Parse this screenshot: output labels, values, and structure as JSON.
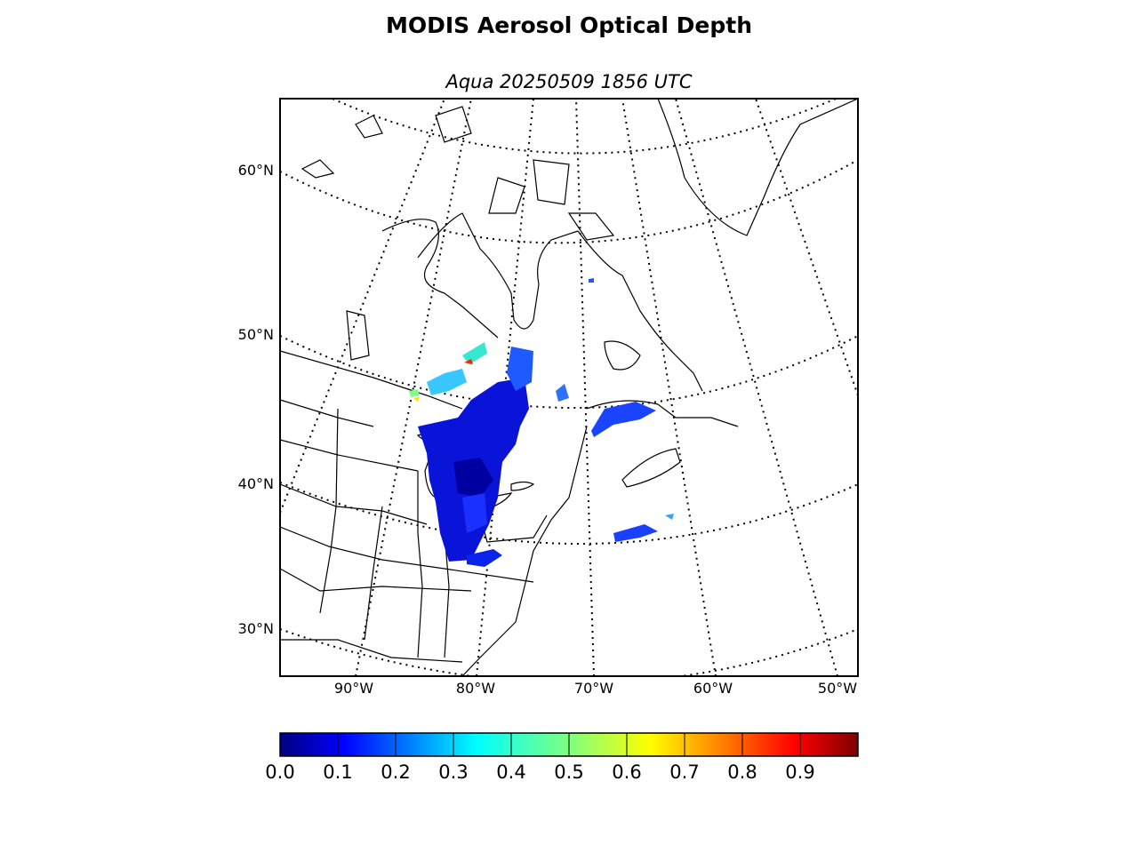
{
  "title": "MODIS Aerosol Optical Depth",
  "subtitle": "Aqua 20250509 1856 UTC",
  "map": {
    "projection": "lambert-conformal",
    "lat_labels": [
      "60°N",
      "50°N",
      "40°N",
      "30°N"
    ],
    "lon_labels": [
      "90°W",
      "80°W",
      "70°W",
      "60°W",
      "50°W"
    ],
    "graticule": "dotted",
    "region": "Northeastern North America"
  },
  "colorbar": {
    "colormap": "jet",
    "range": [
      0.0,
      1.0
    ],
    "ticks": [
      "0.0",
      "0.1",
      "0.2",
      "0.3",
      "0.4",
      "0.5",
      "0.6",
      "0.7",
      "0.8",
      "0.9"
    ],
    "colors": [
      "#00007f",
      "#0000ff",
      "#007fff",
      "#00ffff",
      "#7fff7f",
      "#ffff00",
      "#ff7f00",
      "#ff0000",
      "#7f0000"
    ]
  }
}
